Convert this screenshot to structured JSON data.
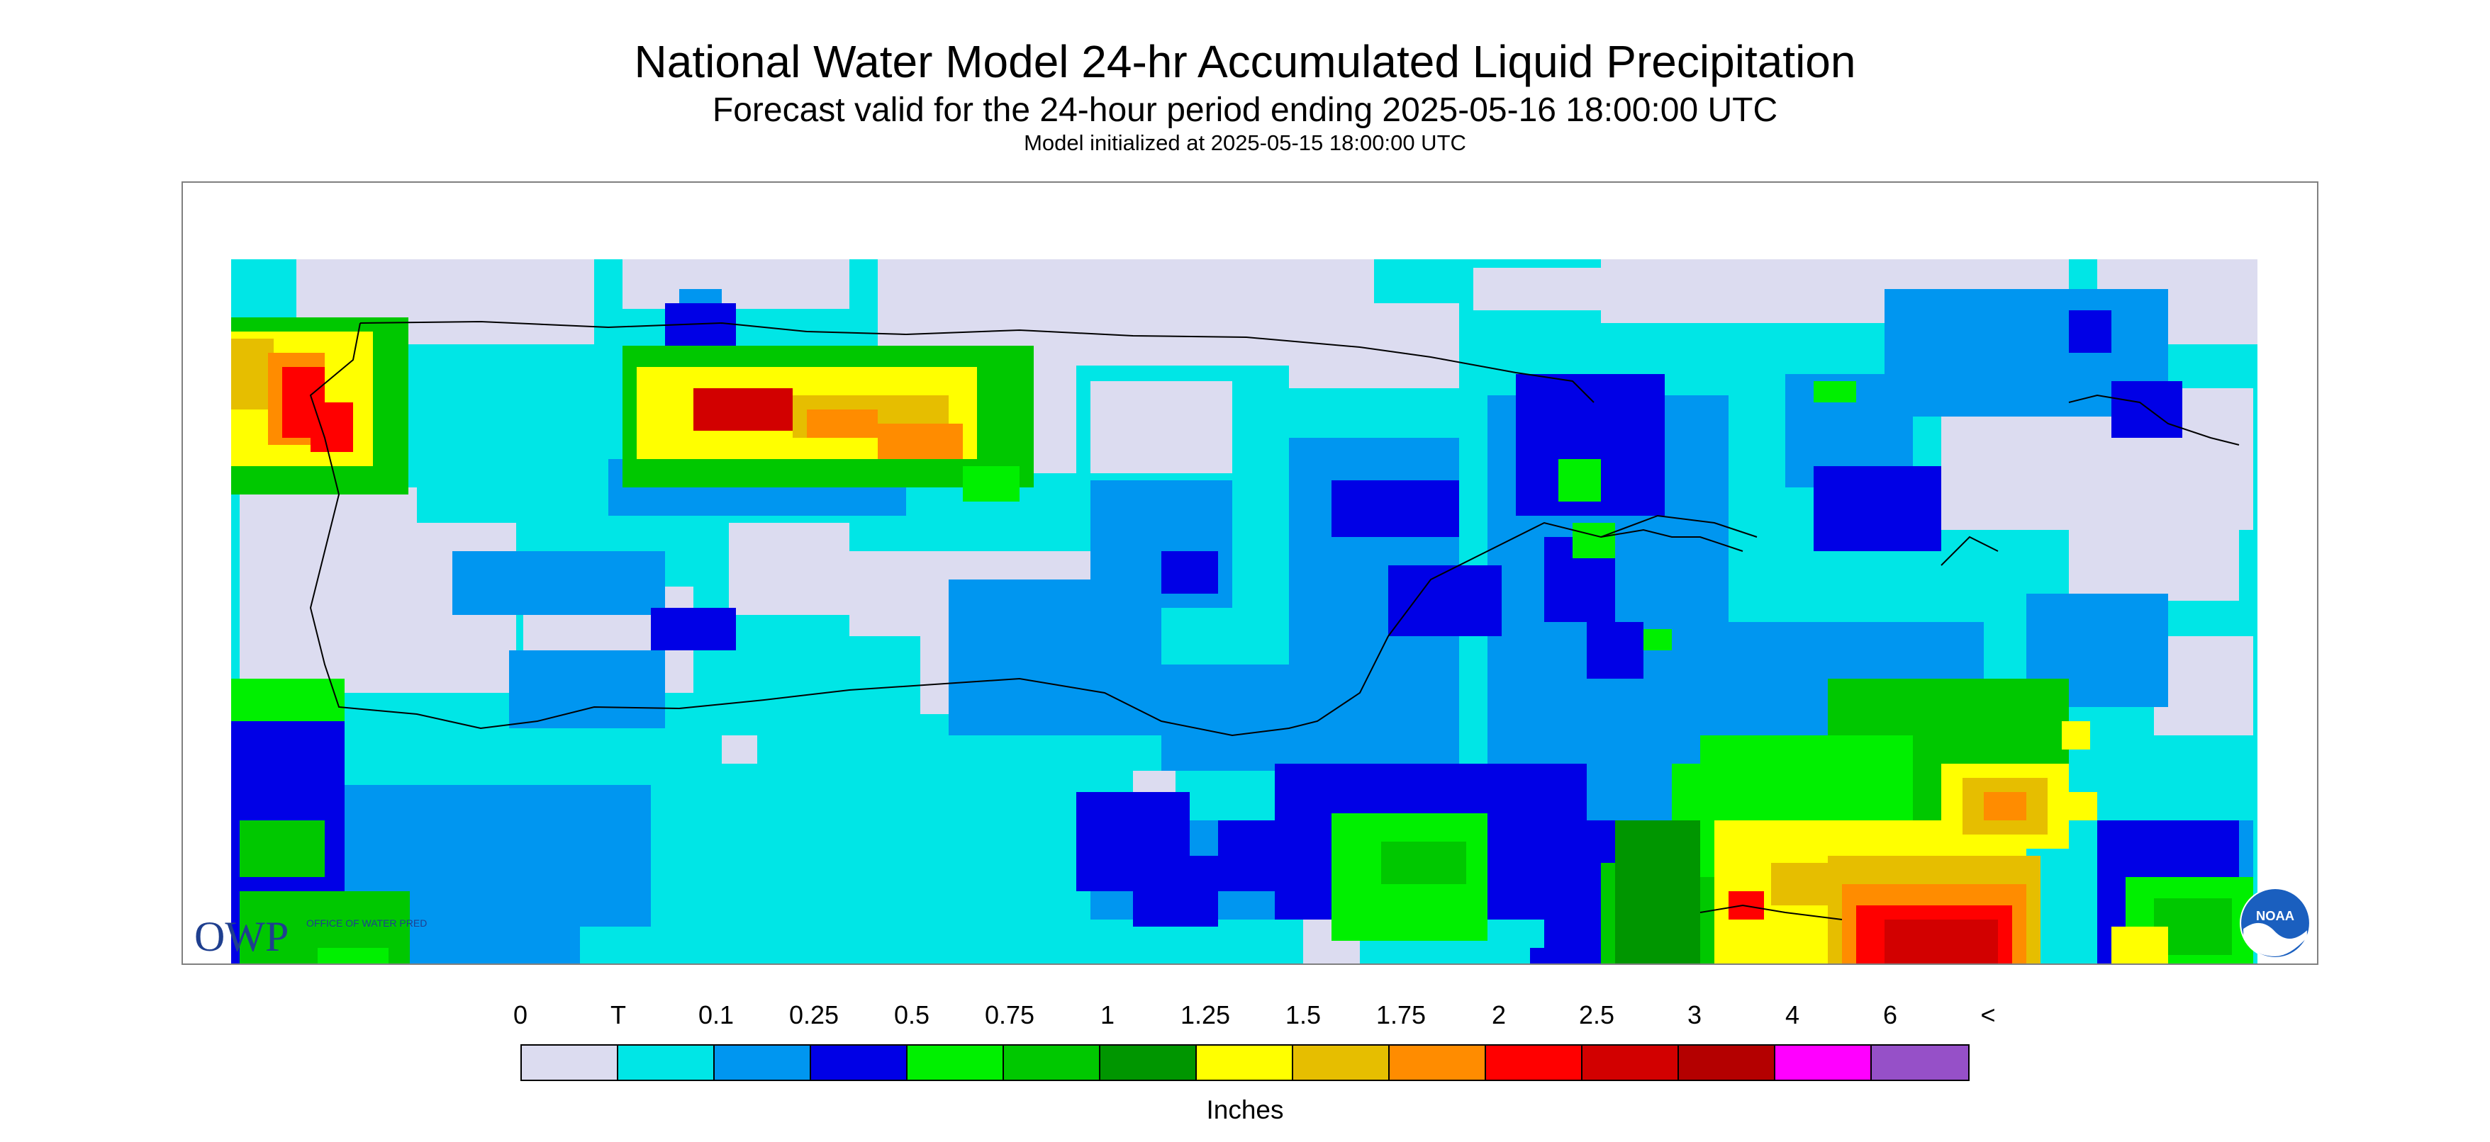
{
  "header": {
    "title": "National Water Model 24-hr Accumulated Liquid Precipitation",
    "subtitle": "Forecast valid for the 24-hour period ending 2025-05-16 18:00:00 UTC",
    "init_line": "Model initialized at 2025-05-15 18:00:00 UTC"
  },
  "legend": {
    "unit": "Inches",
    "tick_labels": [
      "0",
      "T",
      "0.1",
      "0.25",
      "0.5",
      "0.75",
      "1",
      "1.25",
      "1.5",
      "1.75",
      "2",
      "2.5",
      "3",
      "4",
      "6",
      "<"
    ],
    "colors": [
      "#dcdcf0",
      "#00e6e6",
      "#0096f0",
      "#0000e6",
      "#00f000",
      "#00c800",
      "#009600",
      "#ffff00",
      "#e6be00",
      "#ff8c00",
      "#ff0000",
      "#d20000",
      "#b40000",
      "#ff00ff",
      "#9650c8"
    ]
  },
  "logos": {
    "owp": "OWP",
    "owp_text": "OFFICE OF WATER PREDICTION",
    "noaa": "NOAA"
  },
  "map": {
    "background_color": "#00e6e6",
    "no_precip_color": "#dcdcf0"
  }
}
